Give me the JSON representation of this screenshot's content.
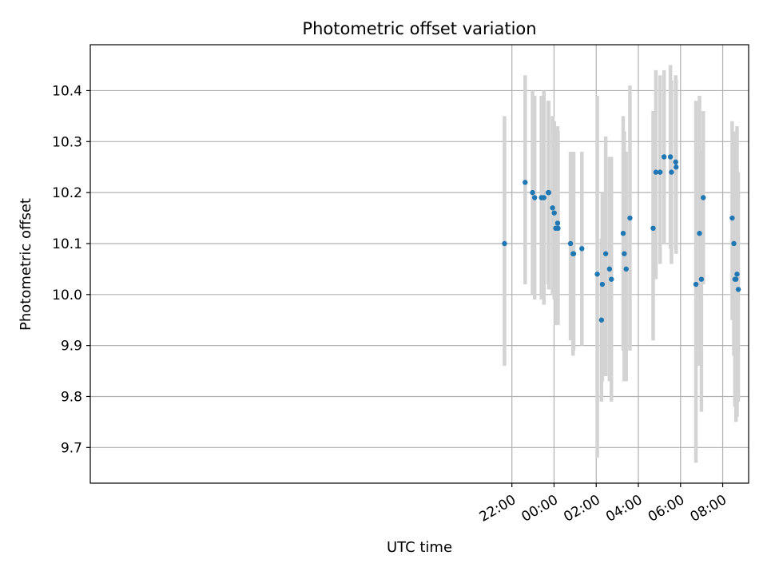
{
  "chart_data": {
    "type": "scatter",
    "title": "Photometric offset variation",
    "xlabel": "UTC time",
    "ylabel": "Photometric offset",
    "x_unit": "hours since 00:00 UTC (negative = previous day)",
    "xlim": [
      -22.0,
      9.23
    ],
    "ylim": [
      9.63,
      10.49
    ],
    "x_ticks": [
      {
        "value": -2,
        "label": "22:00"
      },
      {
        "value": 0,
        "label": "00:00"
      },
      {
        "value": 2,
        "label": "02:00"
      },
      {
        "value": 4,
        "label": "04:00"
      },
      {
        "value": 6,
        "label": "06:00"
      },
      {
        "value": 8,
        "label": "08:00"
      }
    ],
    "y_ticks": [
      {
        "value": 9.7,
        "label": "9.7"
      },
      {
        "value": 9.8,
        "label": "9.8"
      },
      {
        "value": 9.9,
        "label": "9.9"
      },
      {
        "value": 10.0,
        "label": "10.0"
      },
      {
        "value": 10.1,
        "label": "10.1"
      },
      {
        "value": 10.2,
        "label": "10.2"
      },
      {
        "value": 10.3,
        "label": "10.3"
      },
      {
        "value": 10.4,
        "label": "10.4"
      }
    ],
    "grid": true,
    "colors": {
      "points": "#1f77b4",
      "errorbars": "#d3d3d3",
      "grid": "#b0b0b0"
    },
    "points": [
      {
        "x": -2.35,
        "y": 10.1,
        "err_low": 9.86,
        "err_high": 10.35
      },
      {
        "x": -1.37,
        "y": 10.22,
        "err_low": 10.02,
        "err_high": 10.43
      },
      {
        "x": -1.02,
        "y": 10.2,
        "err_low": 10.0,
        "err_high": 10.4
      },
      {
        "x": -0.92,
        "y": 10.19,
        "err_low": 9.99,
        "err_high": 10.39
      },
      {
        "x": -0.6,
        "y": 10.19,
        "err_low": 9.99,
        "err_high": 10.39
      },
      {
        "x": -0.48,
        "y": 10.19,
        "err_low": 9.98,
        "err_high": 10.4
      },
      {
        "x": -0.28,
        "y": 10.2,
        "err_low": 10.02,
        "err_high": 10.38
      },
      {
        "x": -0.25,
        "y": 10.2,
        "err_low": 10.01,
        "err_high": 10.38
      },
      {
        "x": -0.07,
        "y": 10.17,
        "err_low": 10.0,
        "err_high": 10.35
      },
      {
        "x": 0.01,
        "y": 10.16,
        "err_low": 9.99,
        "err_high": 10.34
      },
      {
        "x": 0.08,
        "y": 10.13,
        "err_low": 9.94,
        "err_high": 10.32
      },
      {
        "x": 0.17,
        "y": 10.14,
        "err_low": 9.95,
        "err_high": 10.33
      },
      {
        "x": 0.19,
        "y": 10.13,
        "err_low": 9.94,
        "err_high": 10.32
      },
      {
        "x": 0.78,
        "y": 10.1,
        "err_low": 9.91,
        "err_high": 10.28
      },
      {
        "x": 0.9,
        "y": 10.08,
        "err_low": 9.88,
        "err_high": 10.28
      },
      {
        "x": 0.93,
        "y": 10.08,
        "err_low": 9.89,
        "err_high": 10.28
      },
      {
        "x": 1.32,
        "y": 10.09,
        "err_low": 9.9,
        "err_high": 10.28
      },
      {
        "x": 2.05,
        "y": 10.04,
        "err_low": 9.68,
        "err_high": 10.39
      },
      {
        "x": 2.25,
        "y": 9.95,
        "err_low": 9.79,
        "err_high": 10.11
      },
      {
        "x": 2.29,
        "y": 10.02,
        "err_low": 9.83,
        "err_high": 10.2
      },
      {
        "x": 2.45,
        "y": 10.08,
        "err_low": 9.84,
        "err_high": 10.31
      },
      {
        "x": 2.63,
        "y": 10.05,
        "err_low": 9.83,
        "err_high": 10.27
      },
      {
        "x": 2.72,
        "y": 10.03,
        "err_low": 9.79,
        "err_high": 10.27
      },
      {
        "x": 3.28,
        "y": 10.12,
        "err_low": 9.89,
        "err_high": 10.35
      },
      {
        "x": 3.33,
        "y": 10.08,
        "err_low": 9.83,
        "err_high": 10.32
      },
      {
        "x": 3.42,
        "y": 10.05,
        "err_low": 9.83,
        "err_high": 10.28
      },
      {
        "x": 3.6,
        "y": 10.15,
        "err_low": 9.89,
        "err_high": 10.41
      },
      {
        "x": 4.7,
        "y": 10.13,
        "err_low": 9.91,
        "err_high": 10.36
      },
      {
        "x": 4.83,
        "y": 10.24,
        "err_low": 10.03,
        "err_high": 10.44
      },
      {
        "x": 5.03,
        "y": 10.24,
        "err_low": 10.06,
        "err_high": 10.43
      },
      {
        "x": 5.22,
        "y": 10.27,
        "err_low": 10.1,
        "err_high": 10.44
      },
      {
        "x": 5.52,
        "y": 10.27,
        "err_low": 10.09,
        "err_high": 10.45
      },
      {
        "x": 5.57,
        "y": 10.24,
        "err_low": 10.06,
        "err_high": 10.42
      },
      {
        "x": 5.77,
        "y": 10.26,
        "err_low": 10.09,
        "err_high": 10.43
      },
      {
        "x": 5.79,
        "y": 10.25,
        "err_low": 10.08,
        "err_high": 10.42
      },
      {
        "x": 6.73,
        "y": 10.02,
        "err_low": 9.67,
        "err_high": 10.38
      },
      {
        "x": 6.9,
        "y": 10.12,
        "err_low": 9.86,
        "err_high": 10.39
      },
      {
        "x": 6.99,
        "y": 10.03,
        "err_low": 9.77,
        "err_high": 10.28
      },
      {
        "x": 7.08,
        "y": 10.19,
        "err_low": 10.02,
        "err_high": 10.36
      },
      {
        "x": 8.45,
        "y": 10.15,
        "err_low": 9.95,
        "err_high": 10.34
      },
      {
        "x": 8.53,
        "y": 10.1,
        "err_low": 9.88,
        "err_high": 10.32
      },
      {
        "x": 8.58,
        "y": 10.03,
        "err_low": 9.78,
        "err_high": 10.29
      },
      {
        "x": 8.63,
        "y": 10.03,
        "err_low": 9.75,
        "err_high": 10.31
      },
      {
        "x": 8.68,
        "y": 10.04,
        "err_low": 9.76,
        "err_high": 10.33
      },
      {
        "x": 8.74,
        "y": 10.01,
        "err_low": 9.79,
        "err_high": 10.24
      }
    ]
  }
}
